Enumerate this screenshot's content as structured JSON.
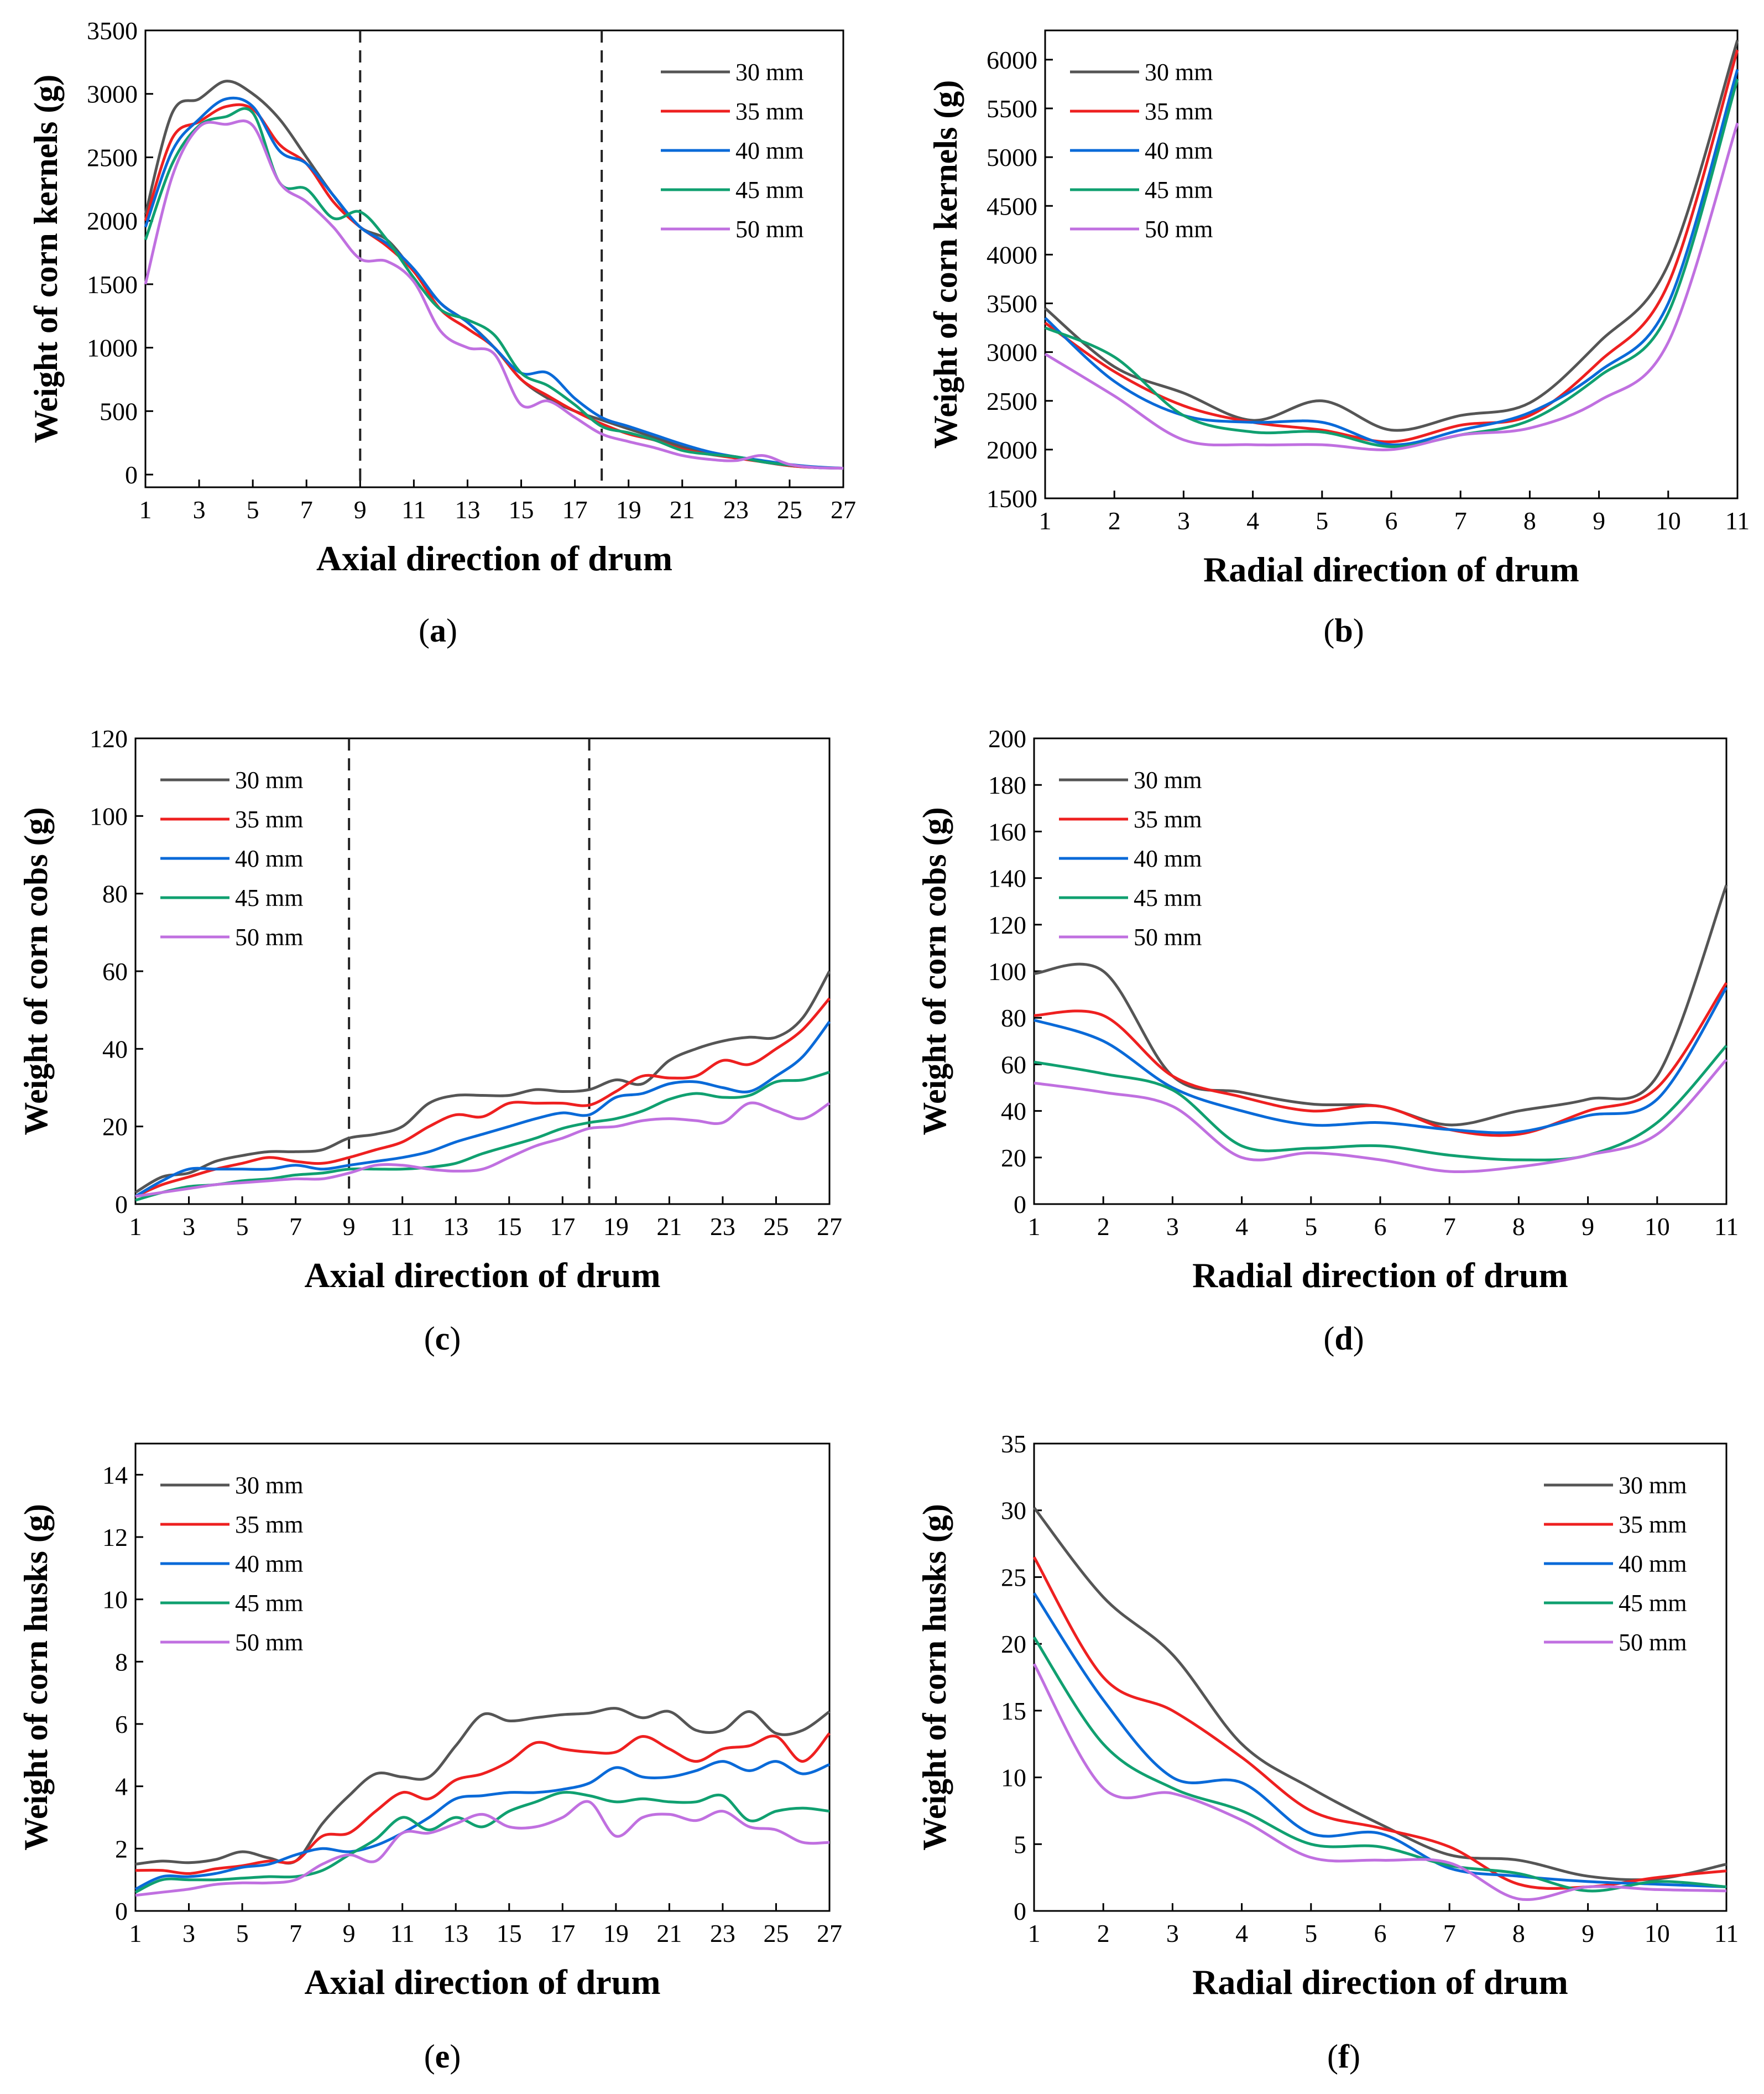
{
  "legend_colors": {
    "30 mm": "#555555",
    "35 mm": "#ee2020",
    "40 mm": "#0a6ad8",
    "45 mm": "#10a070",
    "50 mm": "#c070e0"
  },
  "chart_data": [
    {
      "id": "a",
      "panel": "(a)",
      "panel_letter": "a",
      "type": "line",
      "title": "",
      "xlabel": "Axial direction of drum",
      "ylabel": "Weight of corn kernels (g)",
      "xlim": [
        1,
        27
      ],
      "ylim": [
        -100,
        3500
      ],
      "xticks": [
        1,
        3,
        5,
        7,
        9,
        11,
        13,
        15,
        17,
        19,
        21,
        23,
        25,
        27
      ],
      "yticks": [
        0,
        500,
        1000,
        1500,
        2000,
        2500,
        3000,
        3500
      ],
      "vlines": [
        9,
        18
      ],
      "legend_position": "top-right",
      "x": [
        1,
        2,
        3,
        4,
        5,
        6,
        7,
        8,
        9,
        10,
        11,
        12,
        13,
        14,
        15,
        16,
        17,
        18,
        19,
        20,
        21,
        22,
        23,
        24,
        25,
        26,
        27
      ],
      "series": [
        {
          "name": "30 mm",
          "values": [
            2050,
            2850,
            2960,
            3100,
            3000,
            2800,
            2500,
            2200,
            1950,
            1850,
            1600,
            1350,
            1200,
            1000,
            750,
            600,
            500,
            430,
            360,
            290,
            220,
            170,
            140,
            100,
            70,
            55,
            50
          ]
        },
        {
          "name": "35 mm",
          "values": [
            2000,
            2650,
            2780,
            2900,
            2880,
            2600,
            2450,
            2150,
            1950,
            1800,
            1600,
            1300,
            1150,
            1000,
            750,
            620,
            500,
            400,
            320,
            270,
            200,
            160,
            130,
            100,
            70,
            55,
            50
          ]
        },
        {
          "name": "40 mm",
          "values": [
            1950,
            2550,
            2800,
            2960,
            2900,
            2550,
            2450,
            2200,
            1950,
            1820,
            1620,
            1350,
            1200,
            1000,
            800,
            800,
            600,
            450,
            380,
            310,
            240,
            180,
            140,
            110,
            80,
            60,
            50
          ]
        },
        {
          "name": "45 mm",
          "values": [
            1850,
            2450,
            2750,
            2820,
            2850,
            2300,
            2250,
            2020,
            2070,
            1850,
            1550,
            1300,
            1220,
            1100,
            800,
            700,
            550,
            380,
            330,
            270,
            190,
            160,
            140,
            100,
            75,
            55,
            50
          ]
        },
        {
          "name": "50 mm",
          "values": [
            1500,
            2350,
            2740,
            2760,
            2750,
            2300,
            2150,
            1950,
            1700,
            1680,
            1520,
            1130,
            1000,
            950,
            550,
            580,
            450,
            320,
            260,
            210,
            150,
            120,
            110,
            150,
            80,
            55,
            50
          ]
        }
      ]
    },
    {
      "id": "b",
      "panel": "(b)",
      "panel_letter": "b",
      "type": "line",
      "title": "",
      "xlabel": "Radial direction of drum",
      "ylabel": "Weight of corn kernels (g)",
      "xlim": [
        1,
        11
      ],
      "ylim": [
        1500,
        6300
      ],
      "xticks": [
        1,
        2,
        3,
        4,
        5,
        6,
        7,
        8,
        9,
        10,
        11
      ],
      "yticks": [
        1500,
        2000,
        2500,
        3000,
        3500,
        4000,
        4500,
        5000,
        5500,
        6000
      ],
      "vlines": [],
      "legend_position": "top-left",
      "x": [
        1,
        2,
        3,
        4,
        5,
        6,
        7,
        8,
        9,
        10,
        11
      ],
      "series": [
        {
          "name": "30 mm",
          "values": [
            3450,
            2850,
            2580,
            2300,
            2500,
            2200,
            2350,
            2480,
            3100,
            3900,
            6200
          ]
        },
        {
          "name": "35 mm",
          "values": [
            3300,
            2800,
            2450,
            2280,
            2200,
            2080,
            2250,
            2350,
            2900,
            3700,
            6100
          ]
        },
        {
          "name": "40 mm",
          "values": [
            3350,
            2700,
            2350,
            2280,
            2280,
            2050,
            2200,
            2380,
            2800,
            3500,
            5900
          ]
        },
        {
          "name": "45 mm",
          "values": [
            3250,
            2950,
            2350,
            2180,
            2180,
            2030,
            2150,
            2300,
            2750,
            3400,
            5800
          ]
        },
        {
          "name": "50 mm",
          "values": [
            2980,
            2550,
            2100,
            2050,
            2050,
            2000,
            2150,
            2220,
            2500,
            3100,
            5350
          ]
        }
      ]
    },
    {
      "id": "c",
      "panel": "(c)",
      "panel_letter": "c",
      "type": "line",
      "title": "",
      "xlabel": "Axial direction of drum",
      "ylabel": "Weight of corn cobs (g)",
      "xlim": [
        1,
        27
      ],
      "ylim": [
        0,
        120
      ],
      "xticks": [
        1,
        3,
        5,
        7,
        9,
        11,
        13,
        15,
        17,
        19,
        21,
        23,
        25,
        27
      ],
      "yticks": [
        0,
        20,
        40,
        60,
        80,
        100,
        120
      ],
      "vlines": [
        9,
        18
      ],
      "legend_position": "top-left",
      "x": [
        1,
        2,
        3,
        4,
        5,
        6,
        7,
        8,
        9,
        10,
        11,
        12,
        13,
        14,
        15,
        16,
        17,
        18,
        19,
        20,
        21,
        22,
        23,
        24,
        25,
        26,
        27
      ],
      "series": [
        {
          "name": "30 mm",
          "values": [
            3,
            7,
            8,
            11,
            12.5,
            13.5,
            13.5,
            14,
            17,
            18,
            20,
            26,
            28,
            28,
            28,
            29.5,
            29,
            29.5,
            32,
            31,
            37,
            40,
            42,
            43,
            43,
            48,
            60
          ]
        },
        {
          "name": "35 mm",
          "values": [
            2,
            5,
            7,
            9,
            10.5,
            12,
            11,
            10.5,
            12,
            14,
            16,
            20,
            23,
            22.5,
            26,
            26,
            26,
            25.5,
            29,
            33,
            32.5,
            33,
            37,
            36,
            40,
            45,
            53
          ]
        },
        {
          "name": "40 mm",
          "values": [
            2,
            6,
            9,
            9,
            9,
            9,
            10,
            9,
            10,
            11,
            12,
            13.5,
            16,
            18,
            20,
            22,
            23.5,
            23,
            27.5,
            28.5,
            31,
            31.5,
            30,
            29,
            33,
            38,
            47
          ]
        },
        {
          "name": "45 mm",
          "values": [
            1,
            3,
            4.5,
            5,
            6,
            6.5,
            7.5,
            8,
            9,
            9,
            9,
            9.5,
            10.5,
            13,
            15,
            17,
            19.5,
            21,
            22,
            24,
            27,
            28.5,
            27.5,
            28,
            31.5,
            32,
            34
          ]
        },
        {
          "name": "50 mm",
          "values": [
            2,
            3,
            4,
            5,
            5.5,
            6,
            6.5,
            6.5,
            8,
            10,
            10,
            9,
            8.5,
            9,
            12,
            15,
            17,
            19.5,
            20,
            21.5,
            22,
            21.5,
            21,
            26,
            24,
            22,
            26
          ]
        }
      ]
    },
    {
      "id": "d",
      "panel": "(d)",
      "panel_letter": "d",
      "type": "line",
      "title": "",
      "xlabel": "Radial direction of drum",
      "ylabel": "Weight of corn cobs (g)",
      "xlim": [
        1,
        11
      ],
      "ylim": [
        0,
        200
      ],
      "xticks": [
        1,
        2,
        3,
        4,
        5,
        6,
        7,
        8,
        9,
        10,
        11
      ],
      "yticks": [
        0,
        20,
        40,
        60,
        80,
        100,
        120,
        140,
        160,
        180,
        200
      ],
      "vlines": [],
      "legend_position": "top-left",
      "x": [
        1,
        2,
        3,
        4,
        5,
        6,
        7,
        8,
        9,
        10,
        11
      ],
      "series": [
        {
          "name": "30 mm",
          "values": [
            99,
            100,
            55,
            48,
            43,
            42,
            34,
            40,
            45,
            55,
            137
          ]
        },
        {
          "name": "35 mm",
          "values": [
            81,
            81,
            55,
            46,
            40,
            42,
            32,
            30,
            40,
            50,
            95
          ]
        },
        {
          "name": "40 mm",
          "values": [
            79,
            70,
            50,
            40,
            34,
            35,
            32,
            31,
            38,
            45,
            93
          ]
        },
        {
          "name": "45 mm",
          "values": [
            61,
            56,
            49,
            25,
            24,
            25,
            21,
            19,
            21,
            35,
            68
          ]
        },
        {
          "name": "50 mm",
          "values": [
            52,
            48,
            42,
            20,
            22,
            19,
            14,
            16,
            21,
            30,
            62
          ]
        }
      ]
    },
    {
      "id": "e",
      "panel": "(e)",
      "panel_letter": "e",
      "type": "line",
      "title": "",
      "xlabel": "Axial direction of drum",
      "ylabel": "Weight of corn husks (g)",
      "xlim": [
        1,
        27
      ],
      "ylim": [
        0,
        15
      ],
      "xticks": [
        1,
        3,
        5,
        7,
        9,
        11,
        13,
        15,
        17,
        19,
        21,
        23,
        25,
        27
      ],
      "yticks": [
        0,
        2,
        4,
        6,
        8,
        10,
        12,
        14
      ],
      "vlines": [],
      "legend_position": "top-left",
      "x": [
        1,
        2,
        3,
        4,
        5,
        6,
        7,
        8,
        9,
        10,
        11,
        12,
        13,
        14,
        15,
        16,
        17,
        18,
        19,
        20,
        21,
        22,
        23,
        24,
        25,
        26,
        27
      ],
      "series": [
        {
          "name": "30 mm",
          "values": [
            1.5,
            1.6,
            1.55,
            1.65,
            1.9,
            1.7,
            1.6,
            2.8,
            3.7,
            4.4,
            4.3,
            4.3,
            5.3,
            6.3,
            6.1,
            6.2,
            6.3,
            6.35,
            6.5,
            6.2,
            6.4,
            5.8,
            5.8,
            6.4,
            5.7,
            5.8,
            6.4
          ]
        },
        {
          "name": "35 mm",
          "values": [
            1.3,
            1.3,
            1.2,
            1.35,
            1.45,
            1.6,
            1.6,
            2.4,
            2.5,
            3.2,
            3.8,
            3.6,
            4.2,
            4.4,
            4.8,
            5.4,
            5.2,
            5.1,
            5.1,
            5.6,
            5.2,
            4.8,
            5.2,
            5.3,
            5.6,
            4.8,
            5.7
          ]
        },
        {
          "name": "40 mm",
          "values": [
            0.7,
            1.1,
            1.1,
            1.2,
            1.4,
            1.5,
            1.8,
            2.0,
            1.9,
            2.1,
            2.5,
            3.0,
            3.6,
            3.7,
            3.8,
            3.8,
            3.9,
            4.1,
            4.6,
            4.3,
            4.3,
            4.5,
            4.8,
            4.5,
            4.8,
            4.4,
            4.7
          ]
        },
        {
          "name": "45 mm",
          "values": [
            0.6,
            1.0,
            1.0,
            1.0,
            1.05,
            1.1,
            1.1,
            1.3,
            1.8,
            2.3,
            3.0,
            2.6,
            3.0,
            2.7,
            3.2,
            3.5,
            3.8,
            3.7,
            3.5,
            3.6,
            3.5,
            3.5,
            3.7,
            2.9,
            3.2,
            3.3,
            3.2
          ]
        },
        {
          "name": "50 mm",
          "values": [
            0.5,
            0.6,
            0.7,
            0.85,
            0.9,
            0.9,
            1.0,
            1.5,
            1.8,
            1.6,
            2.5,
            2.5,
            2.8,
            3.1,
            2.7,
            2.7,
            3.0,
            3.5,
            2.4,
            3.0,
            3.1,
            2.9,
            3.2,
            2.7,
            2.6,
            2.2,
            2.2
          ]
        }
      ]
    },
    {
      "id": "f",
      "panel": "(f)",
      "panel_letter": "f",
      "type": "line",
      "title": "",
      "xlabel": "Radial direction of drum",
      "ylabel": "Weight of corn husks (g)",
      "xlim": [
        1,
        11
      ],
      "ylim": [
        0,
        35
      ],
      "xticks": [
        1,
        2,
        3,
        4,
        5,
        6,
        7,
        8,
        9,
        10,
        11
      ],
      "yticks": [
        0,
        5,
        10,
        15,
        20,
        25,
        30,
        35
      ],
      "vlines": [],
      "legend_position": "top-right",
      "x": [
        1,
        2,
        3,
        4,
        5,
        6,
        7,
        8,
        9,
        10,
        11
      ],
      "series": [
        {
          "name": "30 mm",
          "values": [
            30.2,
            23.5,
            19.2,
            12.5,
            9.2,
            6.5,
            4.2,
            3.8,
            2.6,
            2.4,
            3.5
          ]
        },
        {
          "name": "35 mm",
          "values": [
            26.5,
            17.5,
            15.0,
            11.5,
            7.5,
            6.2,
            4.8,
            2.0,
            1.8,
            2.5,
            3.0
          ]
        },
        {
          "name": "40 mm",
          "values": [
            23.8,
            15.8,
            10.0,
            9.6,
            5.8,
            5.8,
            3.2,
            2.6,
            2.2,
            2.0,
            1.8
          ]
        },
        {
          "name": "45 mm",
          "values": [
            20.5,
            12.5,
            9.2,
            7.5,
            5.0,
            4.8,
            3.4,
            2.8,
            1.5,
            2.2,
            1.8
          ]
        },
        {
          "name": "50 mm",
          "values": [
            18.5,
            9.2,
            8.8,
            6.8,
            4.0,
            3.8,
            3.6,
            0.9,
            1.8,
            1.6,
            1.5
          ]
        }
      ]
    }
  ]
}
